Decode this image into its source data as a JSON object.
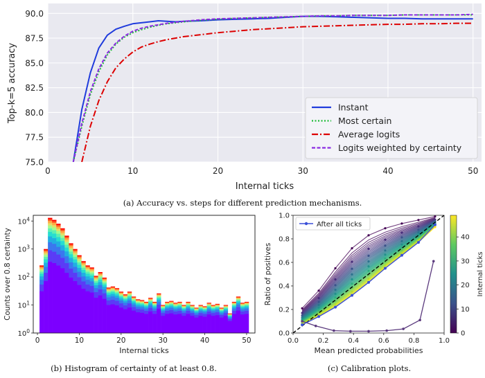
{
  "captions": {
    "a": "(a) Accuracy vs. steps for different prediction mechanisms.",
    "b": "(b) Histogram of certainty of at least 0.8.",
    "c": "(c) Calibration plots."
  },
  "chart_data": [
    {
      "id": "accuracy",
      "type": "line",
      "title": "",
      "xlabel": "Internal ticks",
      "ylabel": "Top-k=5 accuracy",
      "xlim": [
        0,
        51
      ],
      "ylim": [
        75.0,
        91.0
      ],
      "xticks": [
        0,
        10,
        20,
        30,
        40,
        50
      ],
      "yticks": [
        75.0,
        77.5,
        80.0,
        82.5,
        85.0,
        87.5,
        90.0
      ],
      "grid": true,
      "legend_position": "bottom-right",
      "background": "#e9e9f0",
      "series": [
        {
          "name": "Instant",
          "color": "#1f3bdc",
          "dash": "",
          "x": [
            3,
            4,
            5,
            6,
            7,
            8,
            9,
            10,
            11,
            12,
            13,
            14,
            15,
            16,
            18,
            20,
            22,
            24,
            26,
            28,
            30,
            32,
            34,
            36,
            38,
            40,
            42,
            44,
            46,
            48,
            50
          ],
          "y": [
            75.0,
            80.3,
            84.0,
            86.5,
            87.8,
            88.4,
            88.7,
            88.95,
            89.05,
            89.15,
            89.25,
            89.2,
            89.15,
            89.2,
            89.25,
            89.35,
            89.4,
            89.45,
            89.5,
            89.6,
            89.7,
            89.7,
            89.65,
            89.6,
            89.55,
            89.5,
            89.5,
            89.45,
            89.45,
            89.45,
            89.45
          ]
        },
        {
          "name": "Most certain",
          "color": "#1dbb35",
          "dash": "2,2.5",
          "x": [
            3,
            4,
            5,
            6,
            7,
            8,
            9,
            10,
            11,
            12,
            13,
            14,
            15,
            16,
            18,
            20,
            22,
            24,
            26,
            28,
            30,
            32,
            34,
            36,
            38,
            40,
            42,
            44,
            46,
            48,
            50
          ],
          "y": [
            75.0,
            78.6,
            81.8,
            84.1,
            85.8,
            86.9,
            87.6,
            88.05,
            88.35,
            88.6,
            88.8,
            88.95,
            89.05,
            89.15,
            89.3,
            89.4,
            89.5,
            89.55,
            89.6,
            89.65,
            89.7,
            89.75,
            89.75,
            89.8,
            89.8,
            89.8,
            89.85,
            89.85,
            89.85,
            89.85,
            89.85
          ]
        },
        {
          "name": "Average logits",
          "color": "#dd0000",
          "dash": "9,3,2,3",
          "x": [
            4,
            5,
            6,
            7,
            8,
            9,
            10,
            11,
            12,
            13,
            14,
            15,
            16,
            17,
            18,
            20,
            22,
            24,
            26,
            28,
            30,
            32,
            34,
            36,
            38,
            40,
            42,
            44,
            46,
            48,
            50
          ],
          "y": [
            75.0,
            78.6,
            81.2,
            83.1,
            84.5,
            85.4,
            86.1,
            86.6,
            86.9,
            87.15,
            87.35,
            87.5,
            87.65,
            87.75,
            87.85,
            88.05,
            88.2,
            88.35,
            88.45,
            88.55,
            88.65,
            88.7,
            88.75,
            88.8,
            88.85,
            88.9,
            88.9,
            88.95,
            88.95,
            89.0,
            89.0
          ]
        },
        {
          "name": "Logits weighted by certainty",
          "color": "#8a2be2",
          "dash": "5,2.5",
          "x": [
            3,
            4,
            5,
            6,
            7,
            8,
            9,
            10,
            11,
            12,
            13,
            14,
            15,
            16,
            18,
            20,
            22,
            24,
            26,
            28,
            30,
            32,
            34,
            36,
            38,
            40,
            42,
            44,
            46,
            48,
            50
          ],
          "y": [
            75.0,
            78.9,
            82.1,
            84.4,
            86.0,
            87.0,
            87.7,
            88.2,
            88.5,
            88.7,
            88.85,
            89.0,
            89.1,
            89.2,
            89.35,
            89.45,
            89.5,
            89.55,
            89.6,
            89.65,
            89.7,
            89.75,
            89.75,
            89.8,
            89.8,
            89.8,
            89.85,
            89.85,
            89.85,
            89.85,
            89.9
          ]
        }
      ]
    },
    {
      "id": "histogram",
      "type": "bar",
      "title": "",
      "xlabel": "Internal ticks",
      "ylabel": "Counts over 0.8 certainty",
      "scale_y": "log",
      "xlim": [
        -1,
        52
      ],
      "ylim": [
        1,
        16000
      ],
      "xticks": [
        0,
        10,
        20,
        30,
        40,
        50
      ],
      "yticks": [
        1,
        10,
        100,
        1000,
        10000
      ],
      "ytick_labels": [
        "10^0",
        "10^1",
        "10^2",
        "10^3",
        "10^4"
      ],
      "stacked_by": "internal tick (color: purple = early, red = late)",
      "x": [
        1,
        2,
        3,
        4,
        5,
        6,
        7,
        8,
        9,
        10,
        11,
        12,
        13,
        14,
        15,
        16,
        17,
        18,
        19,
        20,
        21,
        22,
        23,
        24,
        25,
        26,
        27,
        28,
        29,
        30,
        31,
        32,
        33,
        34,
        35,
        36,
        37,
        38,
        39,
        40,
        41,
        42,
        43,
        44,
        45,
        46,
        47,
        48,
        49,
        50
      ],
      "values": [
        260,
        1000,
        13000,
        11000,
        8000,
        5500,
        3000,
        1600,
        1000,
        600,
        370,
        260,
        220,
        110,
        150,
        95,
        42,
        46,
        40,
        30,
        24,
        30,
        20,
        16,
        15,
        13,
        18,
        13,
        26,
        10,
        13,
        14,
        12,
        13,
        10,
        13,
        10,
        8,
        10,
        9,
        12,
        10,
        11,
        8,
        10,
        5,
        13,
        20,
        12,
        13
      ]
    },
    {
      "id": "calibration",
      "type": "line",
      "title": "",
      "xlabel": "Mean predicted probabilities",
      "ylabel": "Ratio of positives",
      "xlim": [
        0,
        1.0
      ],
      "ylim": [
        0,
        1.0
      ],
      "xticks": [
        0,
        0.2,
        0.4,
        0.6,
        0.8,
        1.0
      ],
      "yticks": [
        0,
        0.2,
        0.4,
        0.6,
        0.8,
        1.0
      ],
      "xtick_labels": [
        "0.0",
        "0.2",
        "0.4",
        "0.6",
        "0.8",
        "1.0"
      ],
      "ytick_labels": [
        "0.0",
        "0.2",
        "0.4",
        "0.6",
        "0.8",
        "1.0"
      ],
      "legend_position": "top-left",
      "colorbar": {
        "label": "Internal ticks",
        "ticks": [
          0,
          10,
          20,
          30,
          40
        ],
        "range": [
          0,
          49
        ],
        "colormap": "viridis"
      },
      "reference_line": {
        "x": [
          0,
          1
        ],
        "y": [
          0,
          1
        ],
        "style": "dashed",
        "color": "#000000"
      },
      "first_tick_curve": {
        "x": [
          0.06,
          0.15,
          0.27,
          0.38,
          0.5,
          0.62,
          0.73,
          0.84,
          0.93
        ],
        "y": [
          0.1,
          0.06,
          0.02,
          0.015,
          0.015,
          0.02,
          0.035,
          0.11,
          0.61
        ]
      },
      "families": {
        "x": [
          0.06,
          0.17,
          0.28,
          0.39,
          0.5,
          0.61,
          0.72,
          0.83,
          0.94
        ],
        "upper": [
          0.21,
          0.36,
          0.55,
          0.72,
          0.83,
          0.89,
          0.93,
          0.96,
          0.99
        ],
        "lower": [
          0.07,
          0.14,
          0.22,
          0.32,
          0.43,
          0.55,
          0.66,
          0.77,
          0.9
        ]
      },
      "series": [
        {
          "name": "After all ticks",
          "color": "#3a4fd8",
          "x": [
            0.06,
            0.17,
            0.28,
            0.39,
            0.5,
            0.61,
            0.72,
            0.83,
            0.94
          ],
          "y": [
            0.07,
            0.14,
            0.22,
            0.32,
            0.43,
            0.55,
            0.66,
            0.77,
            0.92
          ]
        }
      ]
    }
  ]
}
